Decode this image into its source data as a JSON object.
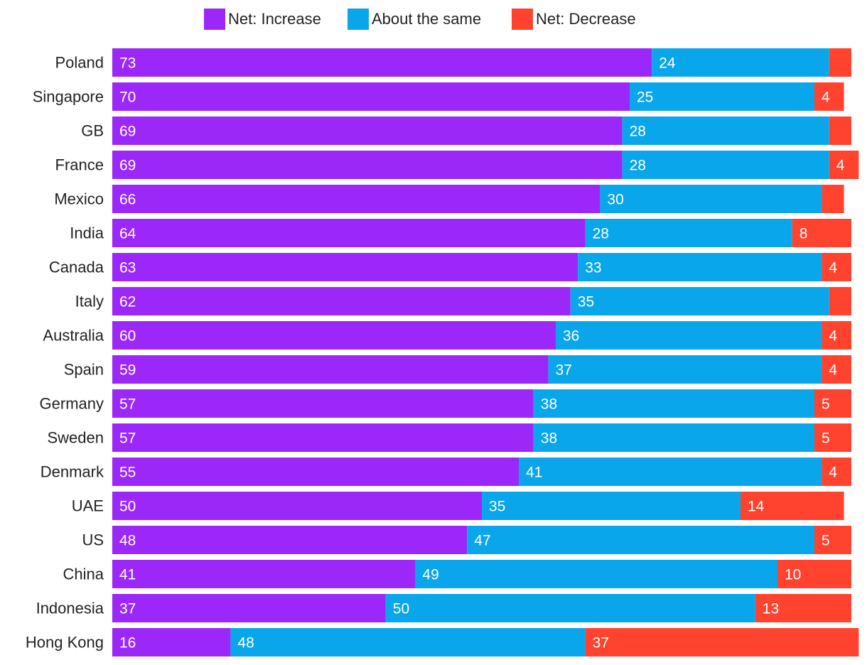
{
  "chart_data": {
    "type": "bar",
    "orientation": "horizontal",
    "stacked": true,
    "title": "",
    "xlabel": "",
    "ylabel": "",
    "xlim": [
      0,
      100
    ],
    "grid": false,
    "legend_position": "top-center",
    "categories": [
      "Poland",
      "Singapore",
      "GB",
      "France",
      "Mexico",
      "India",
      "Canada",
      "Italy",
      "Australia",
      "Spain",
      "Germany",
      "Sweden",
      "Denmark",
      "UAE",
      "US",
      "China",
      "Indonesia",
      "Hong Kong"
    ],
    "series": [
      {
        "name": "Net: Increase",
        "color": "#9b28f8",
        "values": [
          73,
          70,
          69,
          69,
          66,
          64,
          63,
          62,
          60,
          59,
          57,
          57,
          55,
          50,
          48,
          41,
          37,
          16
        ],
        "labels": [
          "73",
          "70",
          "69",
          "69",
          "66",
          "64",
          "63",
          "62",
          "60",
          "59",
          "57",
          "57",
          "55",
          "50",
          "48",
          "41",
          "37",
          "16"
        ]
      },
      {
        "name": "About the same",
        "color": "#0aa6eb",
        "values": [
          24,
          25,
          28,
          28,
          30,
          28,
          33,
          35,
          36,
          37,
          38,
          38,
          41,
          35,
          47,
          49,
          50,
          48
        ],
        "labels": [
          "24",
          "25",
          "28",
          "28",
          "30",
          "28",
          "33",
          "35",
          "36",
          "37",
          "38",
          "38",
          "41",
          "35",
          "47",
          "49",
          "50",
          "48"
        ]
      },
      {
        "name": "Net: Decrease",
        "color": "#ff432e",
        "values": [
          3,
          4,
          3,
          4,
          3,
          8,
          4,
          3,
          4,
          4,
          5,
          5,
          4,
          14,
          5,
          10,
          13,
          37
        ],
        "labels": [
          "",
          "4",
          "",
          "4",
          "",
          "8",
          "4",
          "",
          "4",
          "4",
          "5",
          "5",
          "4",
          "14",
          "5",
          "10",
          "13",
          "37"
        ]
      }
    ]
  }
}
